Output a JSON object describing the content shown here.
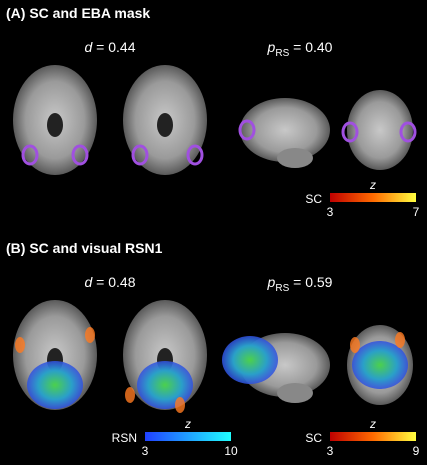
{
  "panels": [
    {
      "title": "(A) SC and EBA mask",
      "stats": [
        {
          "symbol": "d",
          "text": " = 0.44"
        },
        {
          "symbol": "p",
          "subscript": "RS",
          "text": " = 0.40"
        }
      ],
      "colorbars": [
        {
          "label": "SC",
          "unit": "z",
          "min": 3,
          "max": 7
        }
      ]
    },
    {
      "title": "(B) SC and visual RSN1",
      "stats": [
        {
          "symbol": "d",
          "text": " = 0.48"
        },
        {
          "symbol": "p",
          "subscript": "RS",
          "text": " = 0.59"
        }
      ],
      "colorbars": [
        {
          "label": "RSN",
          "unit": "z",
          "min": 3,
          "max": 10
        },
        {
          "label": "SC",
          "unit": "z",
          "min": 3,
          "max": 9
        }
      ]
    }
  ]
}
